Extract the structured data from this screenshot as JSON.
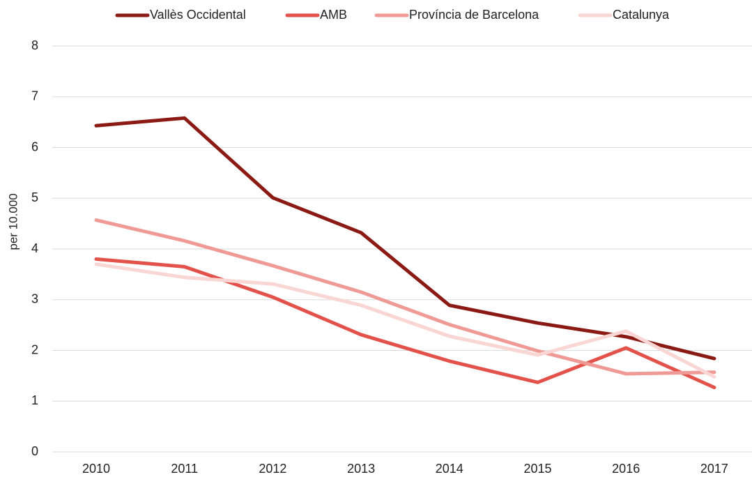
{
  "chart_data": {
    "type": "line",
    "y_label": "per 10.000",
    "categories": [
      "2010",
      "2011",
      "2012",
      "2013",
      "2014",
      "2015",
      "2016",
      "2017"
    ],
    "series": [
      {
        "name": "Vallès Occidental",
        "color": "#8b1a14",
        "values": [
          6.43,
          6.58,
          5.01,
          4.32,
          2.89,
          2.54,
          2.27,
          1.84
        ]
      },
      {
        "name": "AMB",
        "color": "#e3524a",
        "values": [
          3.8,
          3.65,
          3.05,
          2.31,
          1.79,
          1.37,
          2.05,
          1.27
        ]
      },
      {
        "name": "Província de Barcelona",
        "color": "#ef9a94",
        "values": [
          4.57,
          4.16,
          3.67,
          3.15,
          2.51,
          1.99,
          1.54,
          1.57
        ]
      },
      {
        "name": "Catalunya",
        "color": "#f9d6d3",
        "values": [
          3.7,
          3.44,
          3.31,
          2.89,
          2.28,
          1.91,
          2.38,
          1.48
        ]
      }
    ],
    "ylim": [
      0,
      8
    ],
    "yticks": [
      0,
      1,
      2,
      3,
      4,
      5,
      6,
      7,
      8
    ],
    "grid": true,
    "legend": "top"
  }
}
